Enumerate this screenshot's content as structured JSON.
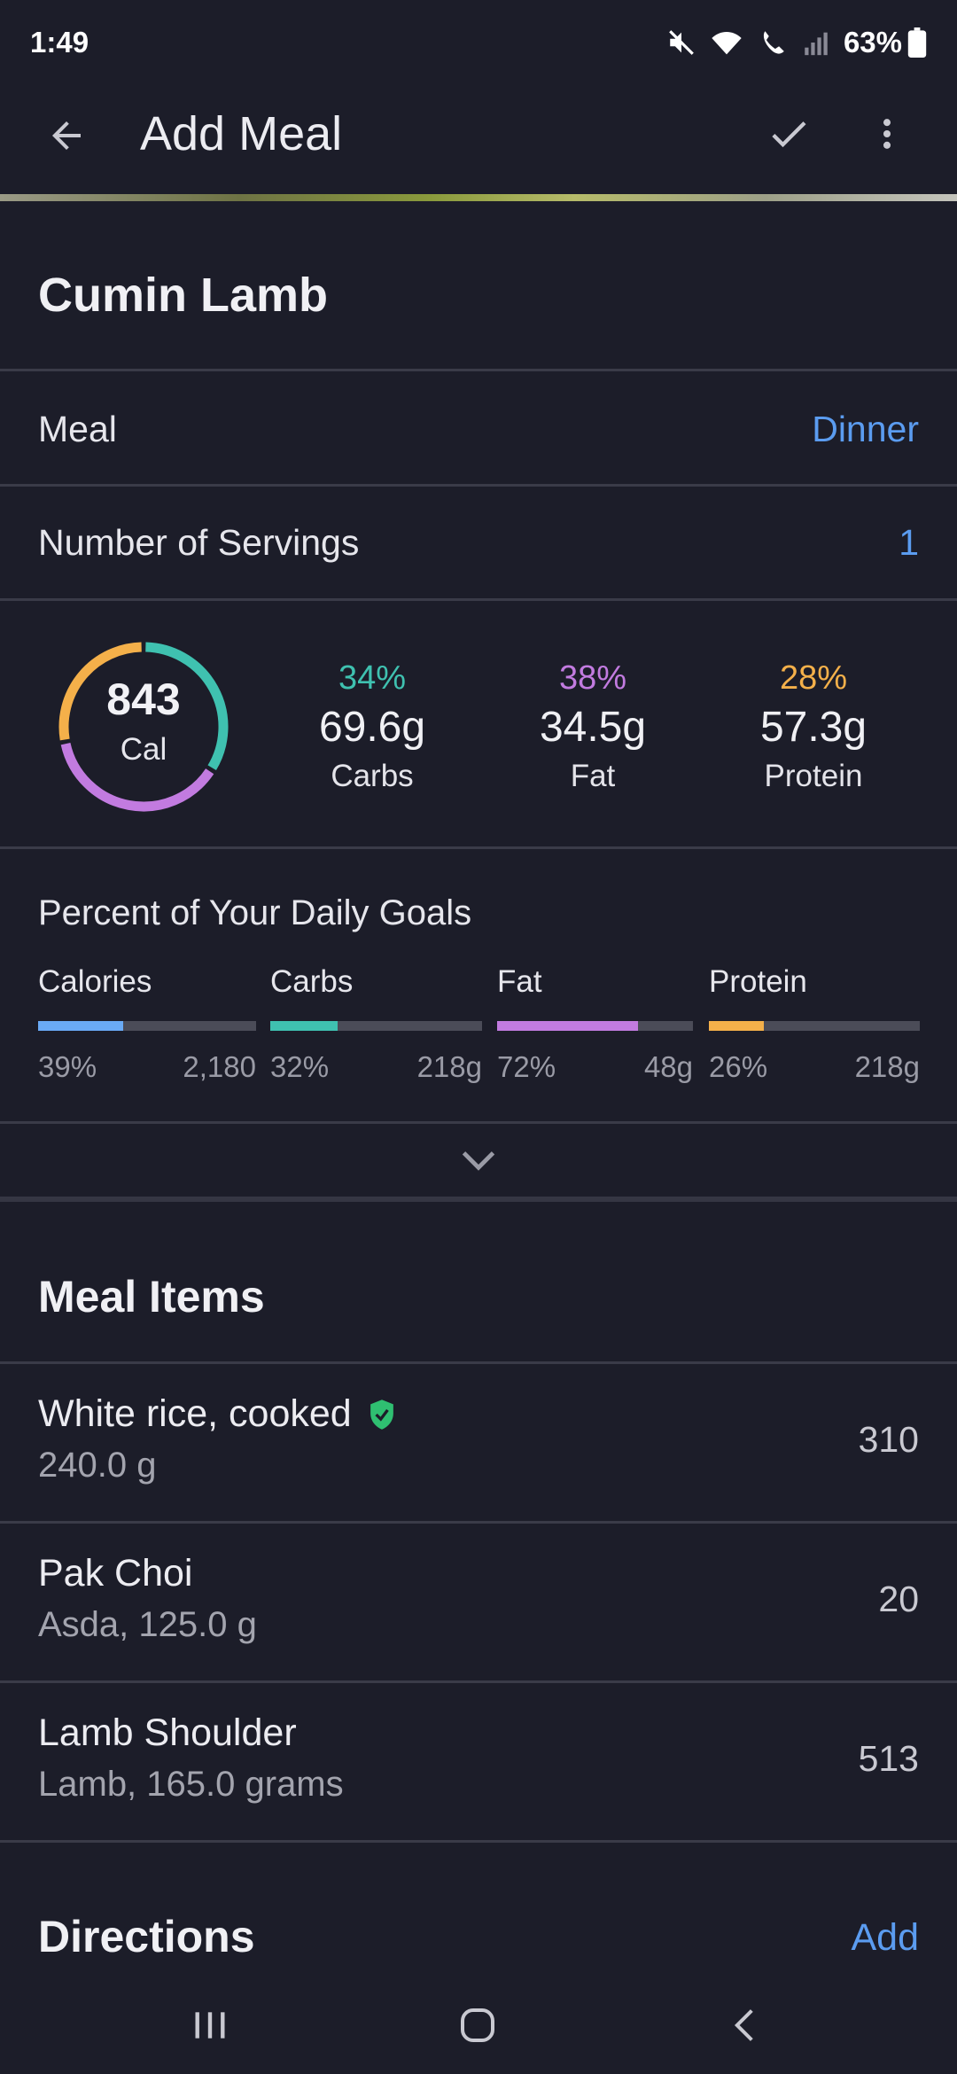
{
  "status_bar": {
    "time": "1:49",
    "battery": "63%"
  },
  "app_bar": {
    "title": "Add Meal"
  },
  "food": {
    "title": "Cumin Lamb"
  },
  "meal_row": {
    "label": "Meal",
    "value": "Dinner"
  },
  "servings_row": {
    "label": "Number of Servings",
    "value": "1"
  },
  "summary": {
    "calories": "843",
    "calories_unit": "Cal",
    "ring_fraction": {
      "carbs": 0.34,
      "fat": 0.38,
      "protein": 0.28
    },
    "macros": [
      {
        "pct": "34%",
        "grams": "69.6g",
        "name": "Carbs",
        "color": "#3fc1b0"
      },
      {
        "pct": "38%",
        "grams": "34.5g",
        "name": "Fat",
        "color": "#c27be0"
      },
      {
        "pct": "28%",
        "grams": "57.3g",
        "name": "Protein",
        "color": "#f4b04a"
      }
    ]
  },
  "daily_goals": {
    "title": "Percent of Your Daily Goals",
    "items": [
      {
        "name": "Calories",
        "pct": "39%",
        "goal": "2,180",
        "fraction": 0.39,
        "color": "#6aaaf5"
      },
      {
        "name": "Carbs",
        "pct": "32%",
        "goal": "218g",
        "fraction": 0.32,
        "color": "#3fc1b0"
      },
      {
        "name": "Fat",
        "pct": "72%",
        "goal": "48g",
        "fraction": 0.72,
        "color": "#c27be0"
      },
      {
        "name": "Protein",
        "pct": "26%",
        "goal": "218g",
        "fraction": 0.26,
        "color": "#f4b04a"
      }
    ]
  },
  "meal_items": {
    "title": "Meal Items",
    "items": [
      {
        "name": "White rice, cooked",
        "detail": "240.0 g",
        "calories": "310",
        "verified": true
      },
      {
        "name": "Pak Choi",
        "detail": "Asda, 125.0 g",
        "calories": "20",
        "verified": false
      },
      {
        "name": "Lamb Shoulder",
        "detail": "Lamb, 165.0 grams",
        "calories": "513",
        "verified": false
      }
    ]
  },
  "directions": {
    "title": "Directions",
    "action": "Add"
  },
  "icons": {
    "back": "arrow-left-icon",
    "confirm": "check-icon",
    "more": "more-vert-icon",
    "expand": "chevron-down-icon",
    "verified": "shield-check-icon"
  },
  "colors": {
    "accent": "#5b9cf0",
    "background": "#1c1d29"
  }
}
